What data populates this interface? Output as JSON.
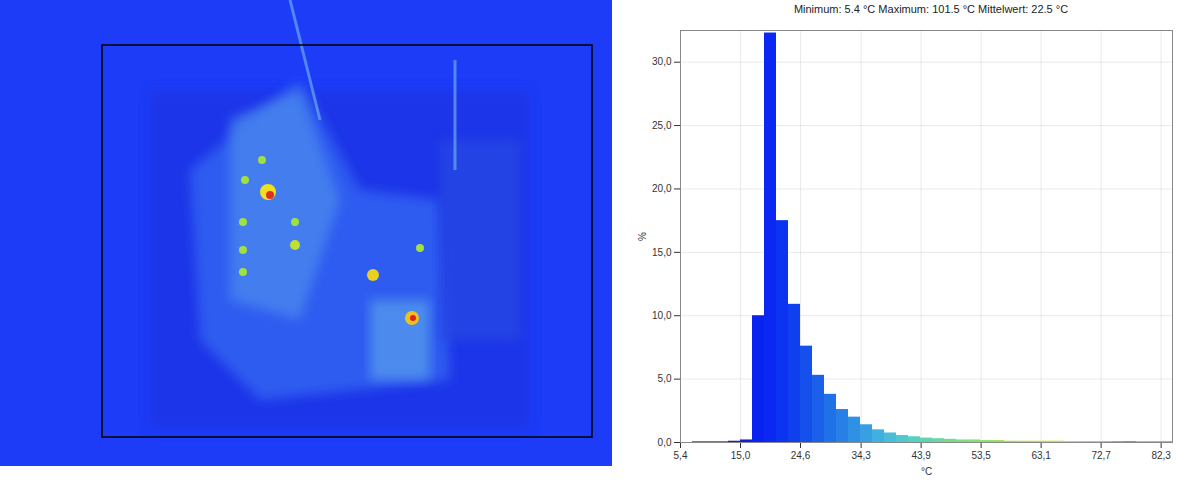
{
  "chart_data": {
    "type": "histogram",
    "title": "Minimum: 5.4 °C Maximum: 101.5 °C Mittelwert: 22.5 °C",
    "xlabel": "°C",
    "ylabel": "%",
    "bins": [
      5.4,
      7.32,
      9.24,
      11.16,
      13.08,
      15.0,
      16.92,
      18.84,
      20.76,
      22.68,
      24.6,
      26.52,
      28.44,
      30.36,
      32.28,
      34.2,
      36.12,
      38.04,
      39.96,
      41.88,
      43.8,
      45.72,
      47.64,
      49.56,
      51.48,
      53.4,
      55.32,
      57.24,
      59.16,
      61.08,
      63.0,
      64.92,
      66.84,
      68.76,
      70.68,
      72.6,
      74.52,
      76.44,
      78.36,
      80.28,
      82.2,
      84.12
    ],
    "values": [
      0,
      0.05,
      0.05,
      0.05,
      0.1,
      0.2,
      10.0,
      32.3,
      17.5,
      10.9,
      7.6,
      5.3,
      3.8,
      2.6,
      2.0,
      1.4,
      1.0,
      0.75,
      0.55,
      0.45,
      0.35,
      0.3,
      0.25,
      0.2,
      0.2,
      0.15,
      0.15,
      0.1,
      0.1,
      0.1,
      0.1,
      0.1,
      0.08,
      0.08,
      0.08,
      0.08,
      0.08,
      0.08,
      0.05,
      0.05,
      0.05
    ],
    "colors": [
      "#1020d8",
      "#1020d8",
      "#1020d8",
      "#1020d8",
      "#1020d8",
      "#1020d8",
      "#0a22f0",
      "#0a28f2",
      "#0c34f0",
      "#1040ee",
      "#1550ec",
      "#1a60ea",
      "#2070e8",
      "#2880e6",
      "#3090e4",
      "#38a0e2",
      "#40b0e0",
      "#48bcd8",
      "#50c8d0",
      "#58d0c0",
      "#60d4b0",
      "#68d8a0",
      "#70dc90",
      "#78e080",
      "#80e070",
      "#8ce060",
      "#98e050",
      "#a4e048",
      "#b0e040",
      "#bce038",
      "#c8e030",
      "#d4dc28",
      "#e0d820",
      "#e8d020",
      "#f0c820",
      "#f0b830",
      "#c0a060",
      "#a09080",
      "#909090",
      "#888888",
      "#808080"
    ],
    "xlim": [
      5.4,
      84.12
    ],
    "ylim": [
      0,
      32.5
    ],
    "xticks": [
      {
        "value": 5.4,
        "label": "5,4"
      },
      {
        "value": 15.0,
        "label": "15,0"
      },
      {
        "value": 24.6,
        "label": "24,6"
      },
      {
        "value": 34.3,
        "label": "34,3"
      },
      {
        "value": 43.9,
        "label": "43,9"
      },
      {
        "value": 53.5,
        "label": "53,5"
      },
      {
        "value": 63.1,
        "label": "63,1"
      },
      {
        "value": 72.7,
        "label": "72,7"
      },
      {
        "value": 82.3,
        "label": "82,3"
      }
    ],
    "yticks": [
      {
        "value": 0,
        "label": "0,0"
      },
      {
        "value": 5,
        "label": "5,0"
      },
      {
        "value": 10,
        "label": "10,0"
      },
      {
        "value": 15,
        "label": "15,0"
      },
      {
        "value": 20,
        "label": "20,0"
      },
      {
        "value": 25,
        "label": "25,0"
      },
      {
        "value": 30,
        "label": "30,0"
      }
    ],
    "grid": true
  }
}
